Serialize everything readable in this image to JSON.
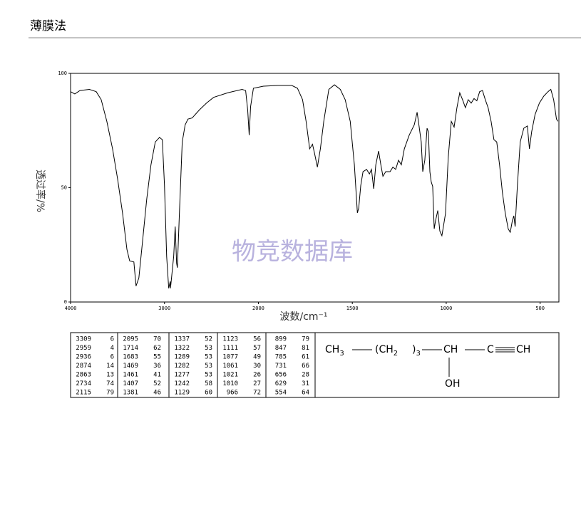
{
  "header": {
    "title": "薄膜法"
  },
  "chart_data": {
    "type": "line",
    "ylabel": "透过率/%",
    "xlabel": "波数/cm⁻¹",
    "watermark": "物竞数据库",
    "xlim": [
      4000,
      400
    ],
    "x_scale_break": 2000,
    "ylim": [
      0,
      100
    ],
    "xticks": [
      4000,
      3000,
      2000,
      1500,
      1000,
      500
    ],
    "yticks": [
      0,
      50,
      100
    ],
    "color": "#000000",
    "x": [
      4000,
      3955,
      3900,
      3800,
      3727,
      3674,
      3614,
      3553,
      3500,
      3447,
      3400,
      3371,
      3326,
      3303,
      3273,
      3235,
      3189,
      3144,
      3098,
      3053,
      3023,
      3000,
      2977,
      2955,
      2939,
      2936,
      2902,
      2886,
      2871,
      2863,
      2841,
      2811,
      2780,
      2750,
      2705,
      2629,
      2553,
      2477,
      2326,
      2174,
      2136,
      2114,
      2098,
      2083,
      2053,
      1973,
      1898,
      1822,
      1792,
      1765,
      1746,
      1727,
      1712,
      1701,
      1686,
      1670,
      1652,
      1625,
      1595,
      1564,
      1538,
      1511,
      1489,
      1473,
      1466,
      1455,
      1443,
      1424,
      1409,
      1398,
      1386,
      1375,
      1360,
      1348,
      1337,
      1322,
      1299,
      1284,
      1269,
      1254,
      1239,
      1223,
      1197,
      1170,
      1155,
      1148,
      1133,
      1125,
      1114,
      1102,
      1095,
      1087,
      1080,
      1072,
      1064,
      1057,
      1045,
      1034,
      1023,
      1015,
      1004,
      989,
      973,
      958,
      943,
      928,
      913,
      898,
      883,
      867,
      852,
      837,
      822,
      807,
      792,
      777,
      761,
      746,
      731,
      716,
      701,
      686,
      670,
      659,
      648,
      640,
      633,
      621,
      606,
      587,
      568,
      557,
      545,
      527,
      504,
      481,
      458,
      443,
      428,
      413,
      405
    ],
    "values": [
      92,
      91,
      92.5,
      93,
      92,
      88.5,
      79,
      67,
      54,
      39,
      23,
      18,
      17.5,
      7,
      10.5,
      26,
      45,
      60,
      70,
      72,
      71,
      51,
      20,
      6,
      9,
      6,
      20,
      33,
      17,
      15,
      39,
      70,
      77.5,
      80,
      80.5,
      84,
      87,
      89.5,
      91.5,
      93,
      92.5,
      84,
      73,
      85.5,
      93.5,
      94.4,
      94.7,
      94.7,
      93.5,
      88.5,
      79,
      67,
      69,
      65,
      59,
      67,
      79,
      93,
      95,
      93,
      88.5,
      79,
      60,
      39,
      41,
      51,
      57,
      58,
      56,
      58,
      49.5,
      60,
      66,
      60,
      55,
      57,
      57,
      59,
      58,
      62,
      60,
      67,
      73,
      77.5,
      83,
      79,
      70,
      57,
      62,
      76,
      74.5,
      57,
      52.6,
      50.5,
      32,
      35.5,
      40,
      31,
      29,
      33,
      38.6,
      63.5,
      79,
      76.5,
      85,
      91.5,
      88.5,
      85,
      88.5,
      87,
      89,
      88,
      92,
      92.5,
      88.5,
      85,
      79,
      71,
      70,
      60,
      48,
      39,
      32,
      30.5,
      35.5,
      37.7,
      33,
      51,
      70,
      76,
      77,
      67,
      74.5,
      82,
      87,
      90,
      92,
      93,
      88.5,
      80,
      79
    ]
  },
  "peak_table": {
    "columns": [
      [
        [
          3309,
          6
        ],
        [
          2959,
          4
        ],
        [
          2936,
          6
        ],
        [
          2874,
          14
        ],
        [
          2863,
          13
        ],
        [
          2734,
          74
        ],
        [
          2115,
          79
        ]
      ],
      [
        [
          2095,
          70
        ],
        [
          1714,
          62
        ],
        [
          1683,
          55
        ],
        [
          1469,
          36
        ],
        [
          1461,
          41
        ],
        [
          1407,
          52
        ],
        [
          1381,
          46
        ]
      ],
      [
        [
          1337,
          52
        ],
        [
          1322,
          53
        ],
        [
          1289,
          53
        ],
        [
          1282,
          53
        ],
        [
          1277,
          53
        ],
        [
          1242,
          58
        ],
        [
          1129,
          60
        ]
      ],
      [
        [
          1123,
          56
        ],
        [
          1111,
          57
        ],
        [
          1077,
          49
        ],
        [
          1061,
          30
        ],
        [
          1021,
          26
        ],
        [
          1010,
          27
        ],
        [
          966,
          72
        ]
      ],
      [
        [
          899,
          79
        ],
        [
          847,
          81
        ],
        [
          785,
          61
        ],
        [
          731,
          66
        ],
        [
          656,
          28
        ],
        [
          629,
          31
        ],
        [
          554,
          64
        ]
      ]
    ]
  },
  "structure": {
    "groups": [
      {
        "text": "CH",
        "sub": "3"
      },
      {
        "text": "(CH",
        "sub": "2"
      },
      {
        "text": ")",
        "sub": "3"
      },
      {
        "text": "CH"
      },
      {
        "text": "C"
      },
      {
        "text": "CH"
      }
    ],
    "substituent": "OH"
  }
}
